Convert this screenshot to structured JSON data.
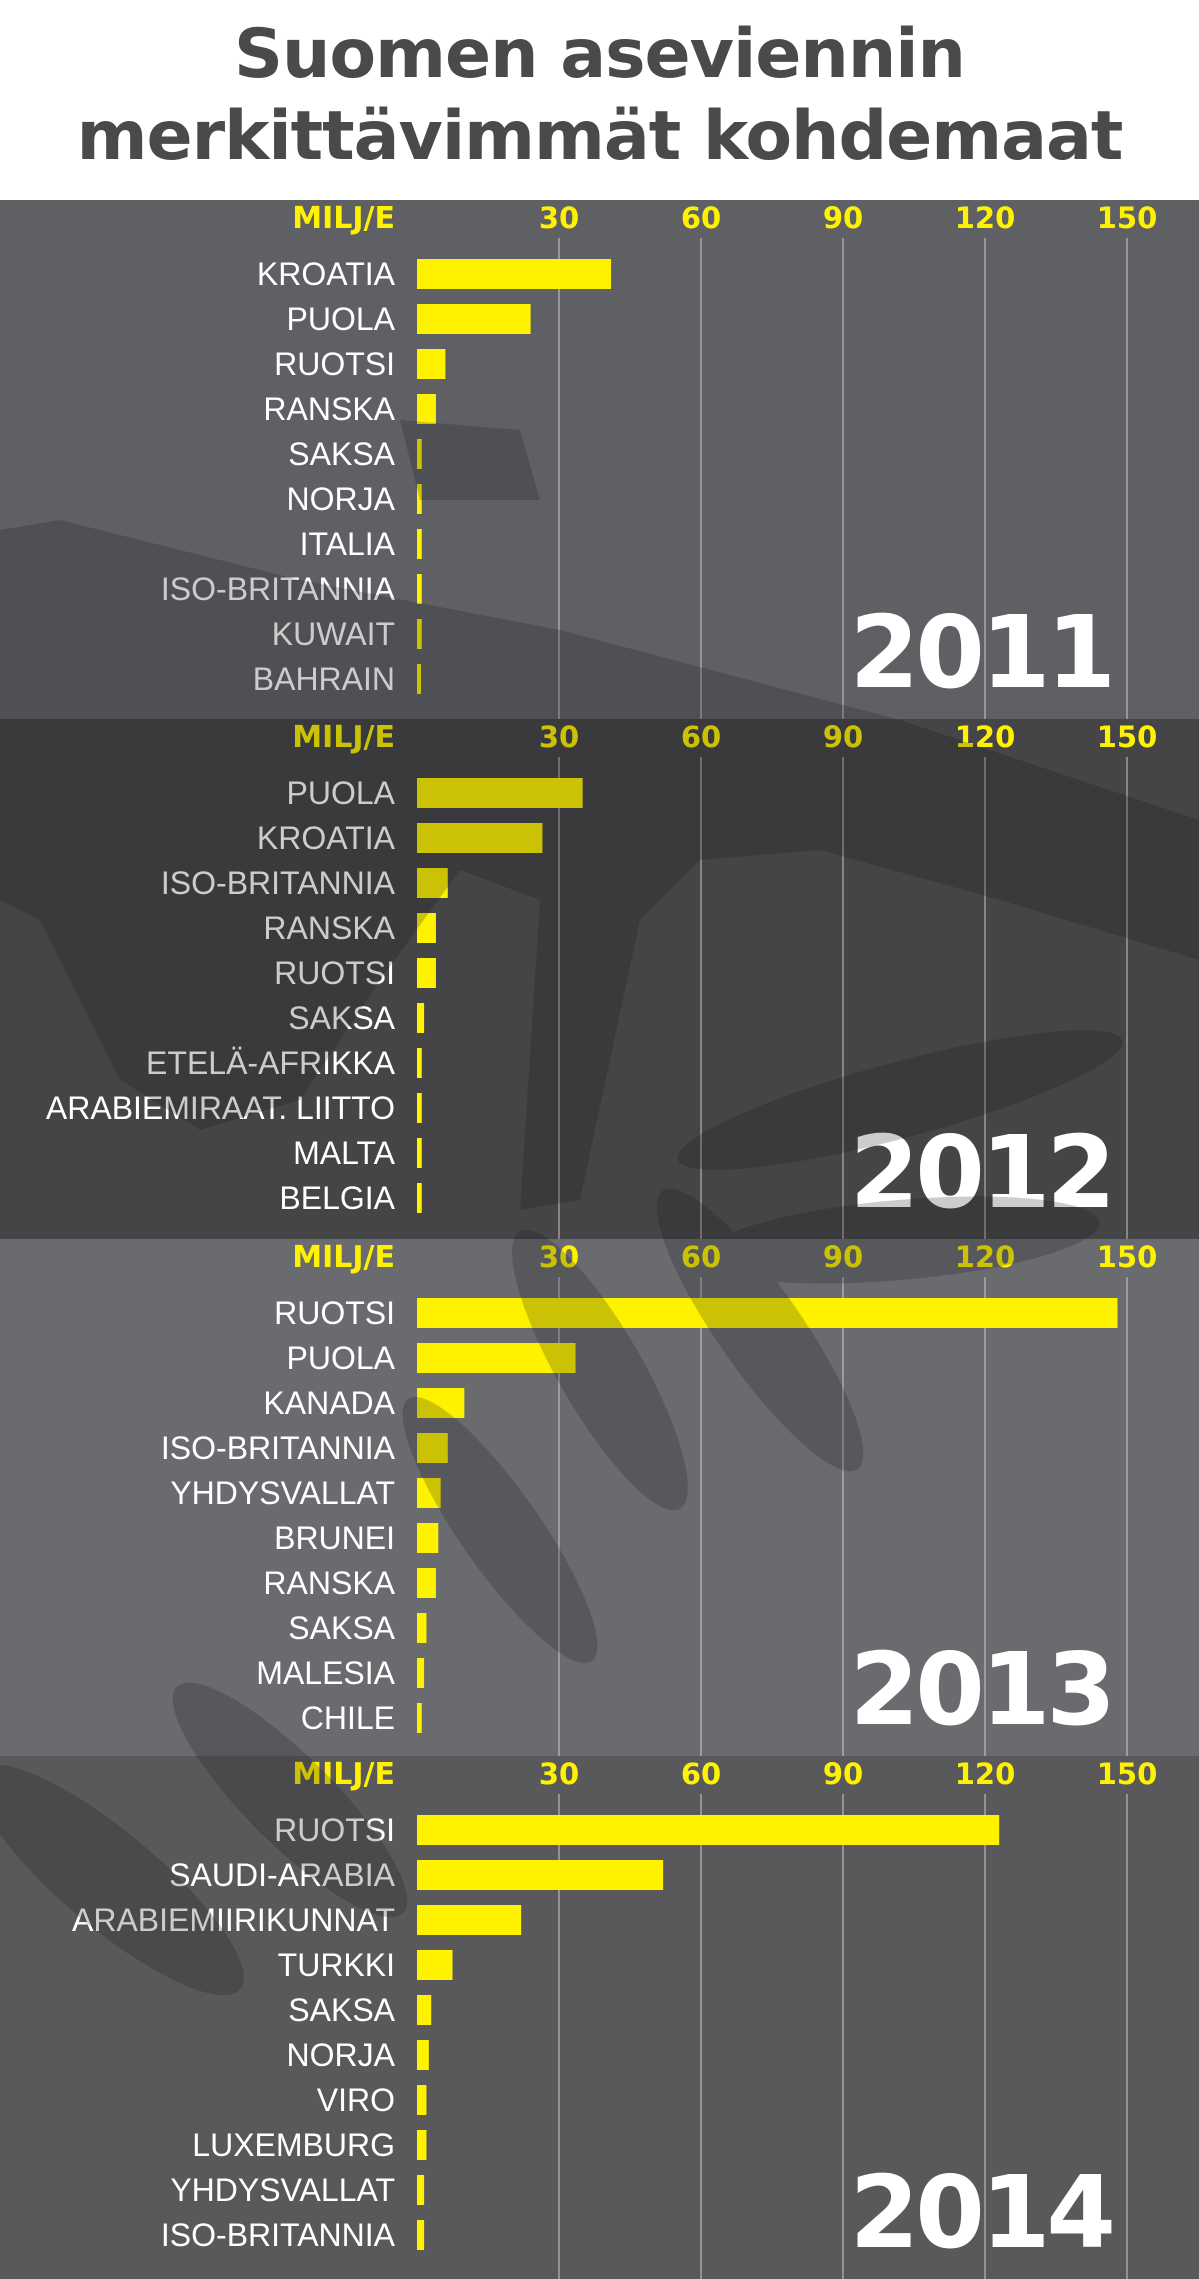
{
  "title": {
    "line1": "Suomen aseviennin",
    "line2": "merkittävimmät kohdemaat"
  },
  "colors": {
    "bar": "#fff200",
    "axis_label": "#fff200",
    "category_text": "#ffffff",
    "year_text": "#ffffff",
    "gridline": "#d8d8d8",
    "panel_backgrounds": [
      "#5f6064",
      "#454547",
      "#6a6b6f",
      "#59595c"
    ],
    "title_text": "#4a4a4c"
  },
  "chart_data": [
    {
      "type": "bar",
      "orientation": "horizontal",
      "year": "2011",
      "unit_label": "MILJ/E",
      "xlim": [
        0,
        150
      ],
      "xticks": [
        30,
        60,
        90,
        120,
        150
      ],
      "categories": [
        "KROATIA",
        "PUOLA",
        "RUOTSI",
        "RANSKA",
        "SAKSA",
        "NORJA",
        "ITALIA",
        "ISO-BRITANNIA",
        "KUWAIT",
        "BAHRAIN"
      ],
      "values": [
        41,
        24,
        6,
        4,
        1,
        1,
        1,
        1,
        1,
        0.5
      ]
    },
    {
      "type": "bar",
      "orientation": "horizontal",
      "year": "2012",
      "unit_label": "MILJ/E",
      "xlim": [
        0,
        150
      ],
      "xticks": [
        30,
        60,
        90,
        120,
        150
      ],
      "categories": [
        "PUOLA",
        "KROATIA",
        "ISO-BRITANNIA",
        "RANSKA",
        "RUOTSI",
        "SAKSA",
        "ETELÄ-AFRIKKA",
        "ARABIEMIRAAT. LIITTO",
        "MALTA",
        "BELGIA"
      ],
      "values": [
        35,
        26.5,
        6.5,
        4,
        4,
        1.5,
        1,
        1,
        1,
        1
      ]
    },
    {
      "type": "bar",
      "orientation": "horizontal",
      "year": "2013",
      "unit_label": "MILJ/E",
      "xlim": [
        0,
        150
      ],
      "xticks": [
        30,
        60,
        90,
        120,
        150
      ],
      "categories": [
        "RUOTSI",
        "PUOLA",
        "KANADA",
        "ISO-BRITANNIA",
        "YHDYSVALLAT",
        "BRUNEI",
        "RANSKA",
        "SAKSA",
        "MALESIA",
        "CHILE"
      ],
      "values": [
        148,
        33.5,
        10,
        6.5,
        5,
        4.5,
        4,
        2,
        1.5,
        1
      ]
    },
    {
      "type": "bar",
      "orientation": "horizontal",
      "year": "2014",
      "unit_label": "MILJ/E",
      "xlim": [
        0,
        150
      ],
      "xticks": [
        30,
        60,
        90,
        120,
        150
      ],
      "categories": [
        "RUOTSI",
        "SAUDI-ARABIA",
        "ARABIEMIIRIKUNNAT",
        "TURKKI",
        "SAKSA",
        "NORJA",
        "VIRO",
        "LUXEMBURG",
        "YHDYSVALLAT",
        "ISO-BRITANNIA"
      ],
      "values": [
        123,
        52,
        22,
        7.5,
        3,
        2.5,
        2,
        2,
        1.5,
        1.5
      ]
    }
  ]
}
